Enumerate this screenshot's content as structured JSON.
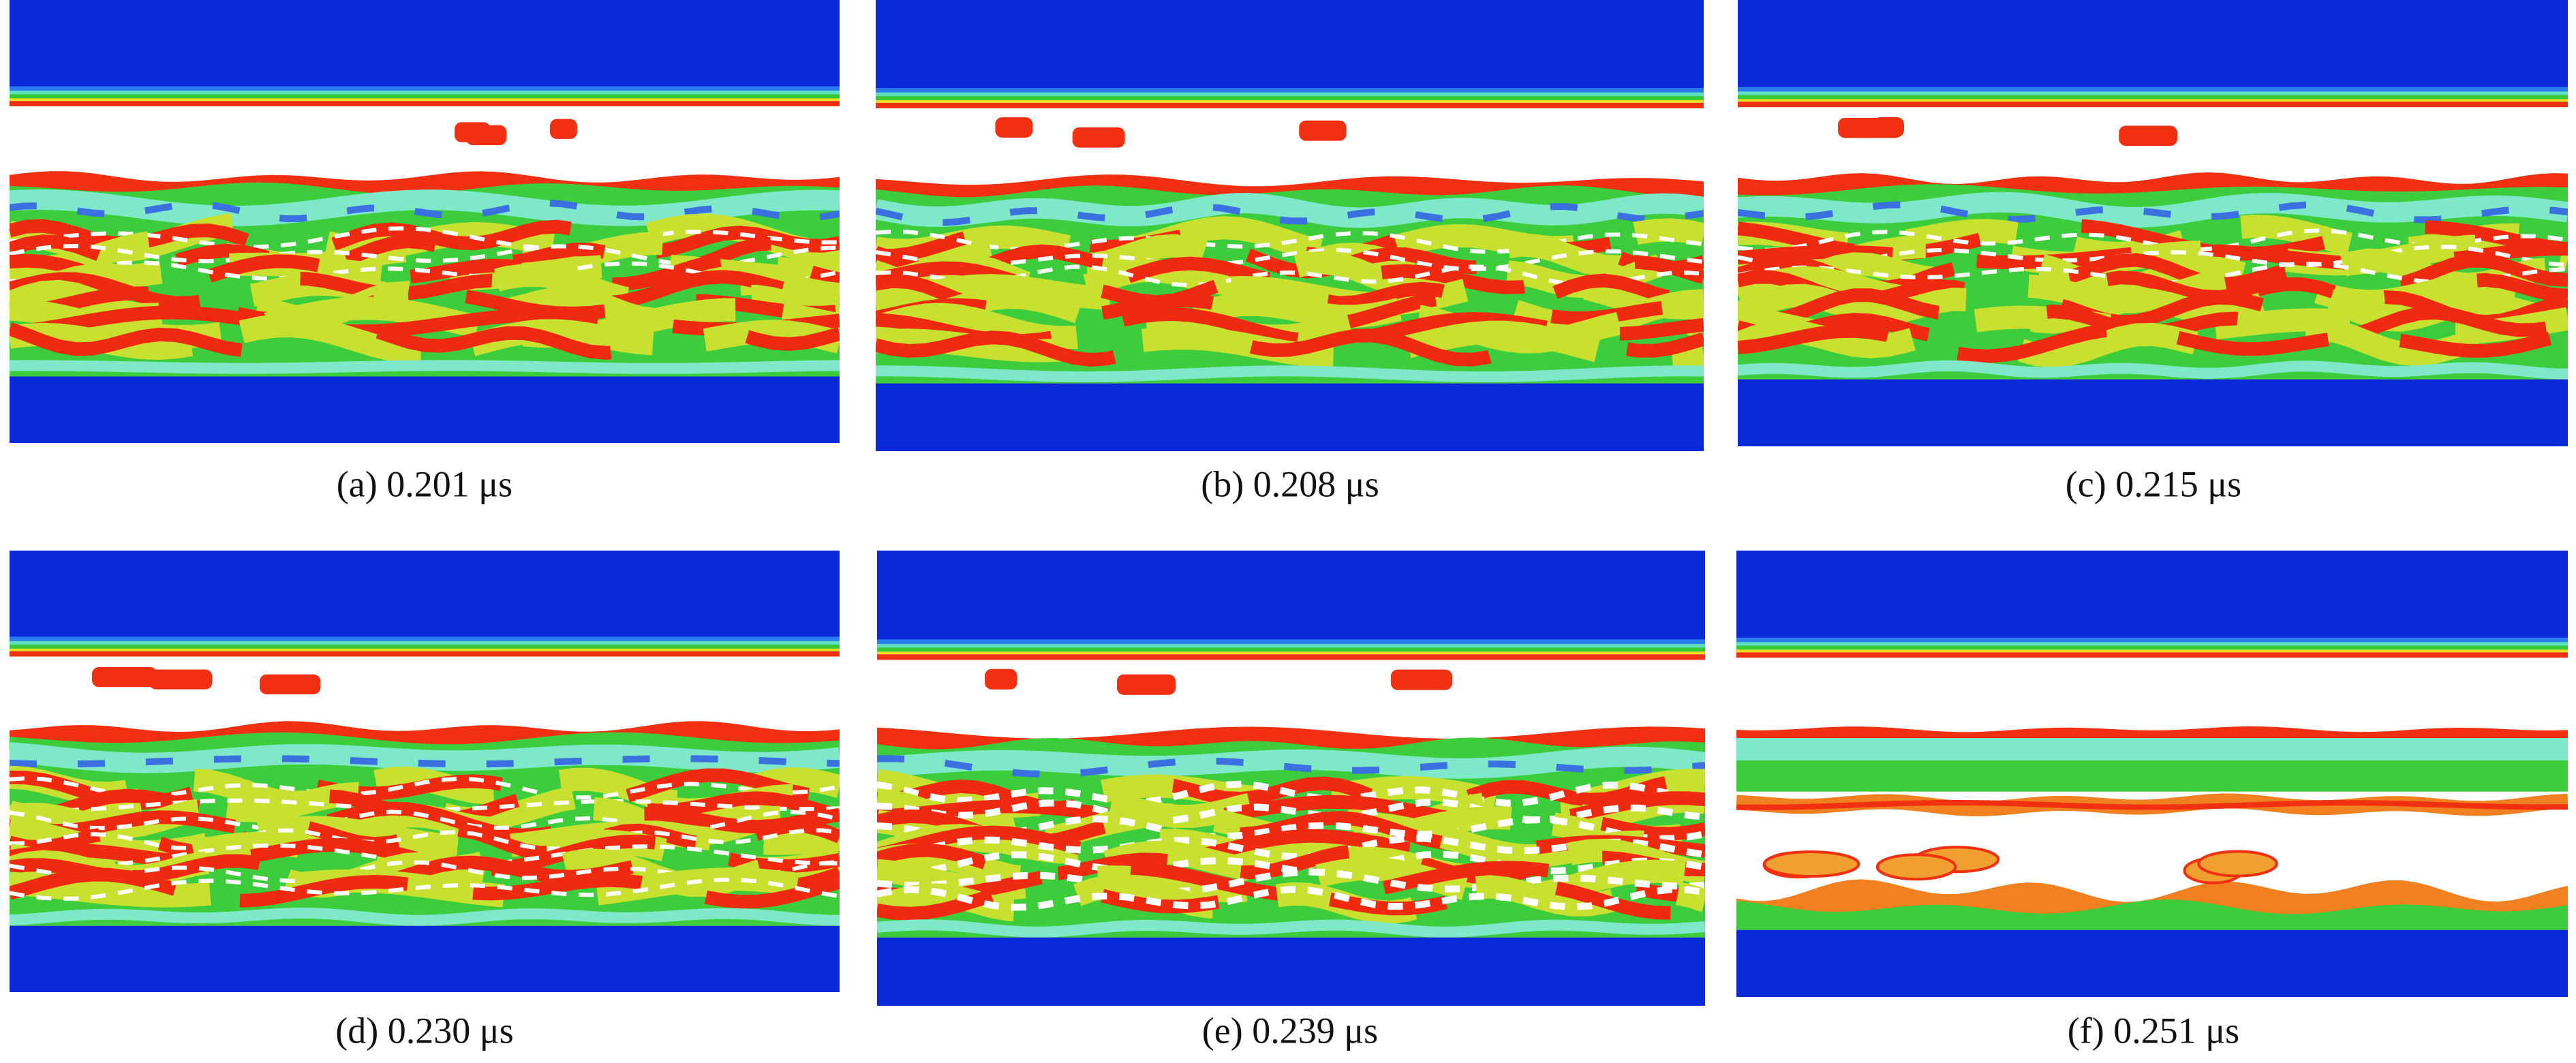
{
  "figure": {
    "panels": [
      {
        "caption": "(a) 0.201 μs"
      },
      {
        "caption": "(b) 0.208 μs"
      },
      {
        "caption": "(c) 0.215 μs"
      },
      {
        "caption": "(d) 0.230 μs"
      },
      {
        "caption": "(e) 0.239 μs"
      },
      {
        "caption": "(f) 0.251 μs"
      }
    ]
  }
}
